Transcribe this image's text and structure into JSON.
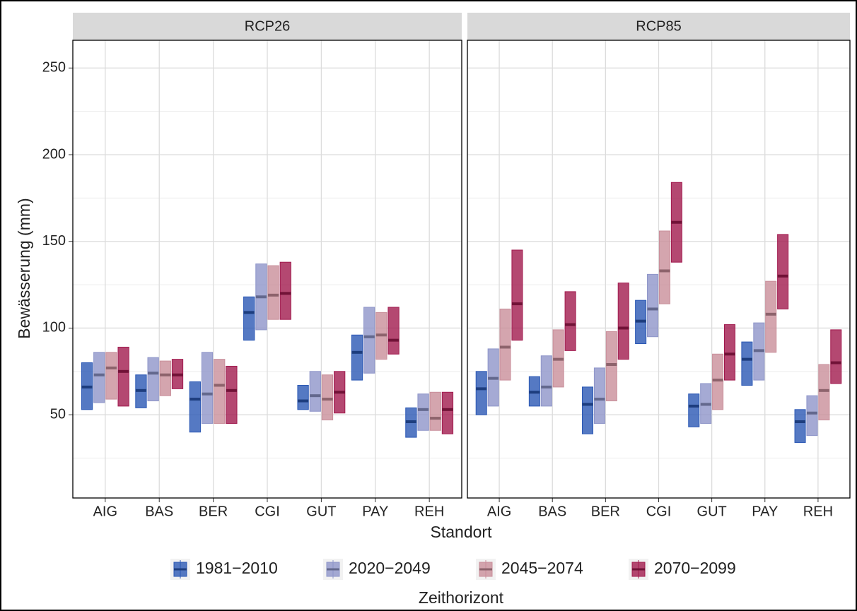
{
  "chart_data": {
    "type": "crossbar",
    "x_label": "Standort",
    "y_label": "Bewässerung (mm)",
    "legend_title": "Zeithorizont",
    "legend_position": "bottom",
    "grid": true,
    "categories": [
      "AIG",
      "BAS",
      "BER",
      "CGI",
      "GUT",
      "PAY",
      "REH"
    ],
    "ylim": [
      2,
      266
    ],
    "yticks": [
      50,
      100,
      150,
      200,
      250
    ],
    "y_minor_grid": [
      25,
      75,
      125,
      175,
      225
    ],
    "series": [
      {
        "name": "1981−2010",
        "color": "#2a57b4"
      },
      {
        "name": "2020−2049",
        "color": "#8e95c9"
      },
      {
        "name": "2045−2074",
        "color": "#c98e9a"
      },
      {
        "name": "2070−2099",
        "color": "#a11a4e"
      }
    ],
    "panels": [
      {
        "title": "RCP26",
        "lower": [
          [
            53,
            54,
            40,
            93,
            53,
            70,
            37
          ],
          [
            57,
            58,
            45,
            99,
            52,
            74,
            41
          ],
          [
            59,
            61,
            45,
            105,
            47,
            82,
            41
          ],
          [
            55,
            65,
            45,
            105,
            51,
            85,
            39
          ]
        ],
        "middle": [
          [
            66,
            64,
            59,
            109,
            58,
            86,
            46
          ],
          [
            73,
            74,
            62,
            118,
            61,
            95,
            53
          ],
          [
            77,
            73,
            67,
            119,
            59,
            96,
            48
          ],
          [
            75,
            73,
            64,
            120,
            63,
            93,
            53
          ]
        ],
        "upper": [
          [
            80,
            73,
            69,
            118,
            67,
            96,
            54
          ],
          [
            86,
            83,
            86,
            137,
            75,
            112,
            62
          ],
          [
            86,
            81,
            82,
            136,
            73,
            109,
            63
          ],
          [
            89,
            82,
            78,
            138,
            75,
            112,
            63
          ]
        ]
      },
      {
        "title": "RCP85",
        "lower": [
          [
            50,
            55,
            39,
            91,
            43,
            67,
            34
          ],
          [
            55,
            55,
            45,
            95,
            45,
            70,
            38
          ],
          [
            70,
            66,
            58,
            114,
            53,
            86,
            47
          ],
          [
            93,
            87,
            82,
            138,
            70,
            111,
            68
          ]
        ],
        "middle": [
          [
            65,
            63,
            56,
            104,
            55,
            82,
            46
          ],
          [
            71,
            66,
            59,
            111,
            56,
            87,
            51
          ],
          [
            89,
            82,
            79,
            133,
            70,
            108,
            64
          ],
          [
            114,
            102,
            100,
            161,
            85,
            130,
            80
          ]
        ],
        "upper": [
          [
            75,
            72,
            66,
            116,
            62,
            92,
            53
          ],
          [
            88,
            84,
            77,
            131,
            68,
            103,
            61
          ],
          [
            111,
            99,
            98,
            156,
            85,
            127,
            79
          ],
          [
            145,
            121,
            126,
            184,
            102,
            154,
            99
          ]
        ]
      }
    ]
  }
}
